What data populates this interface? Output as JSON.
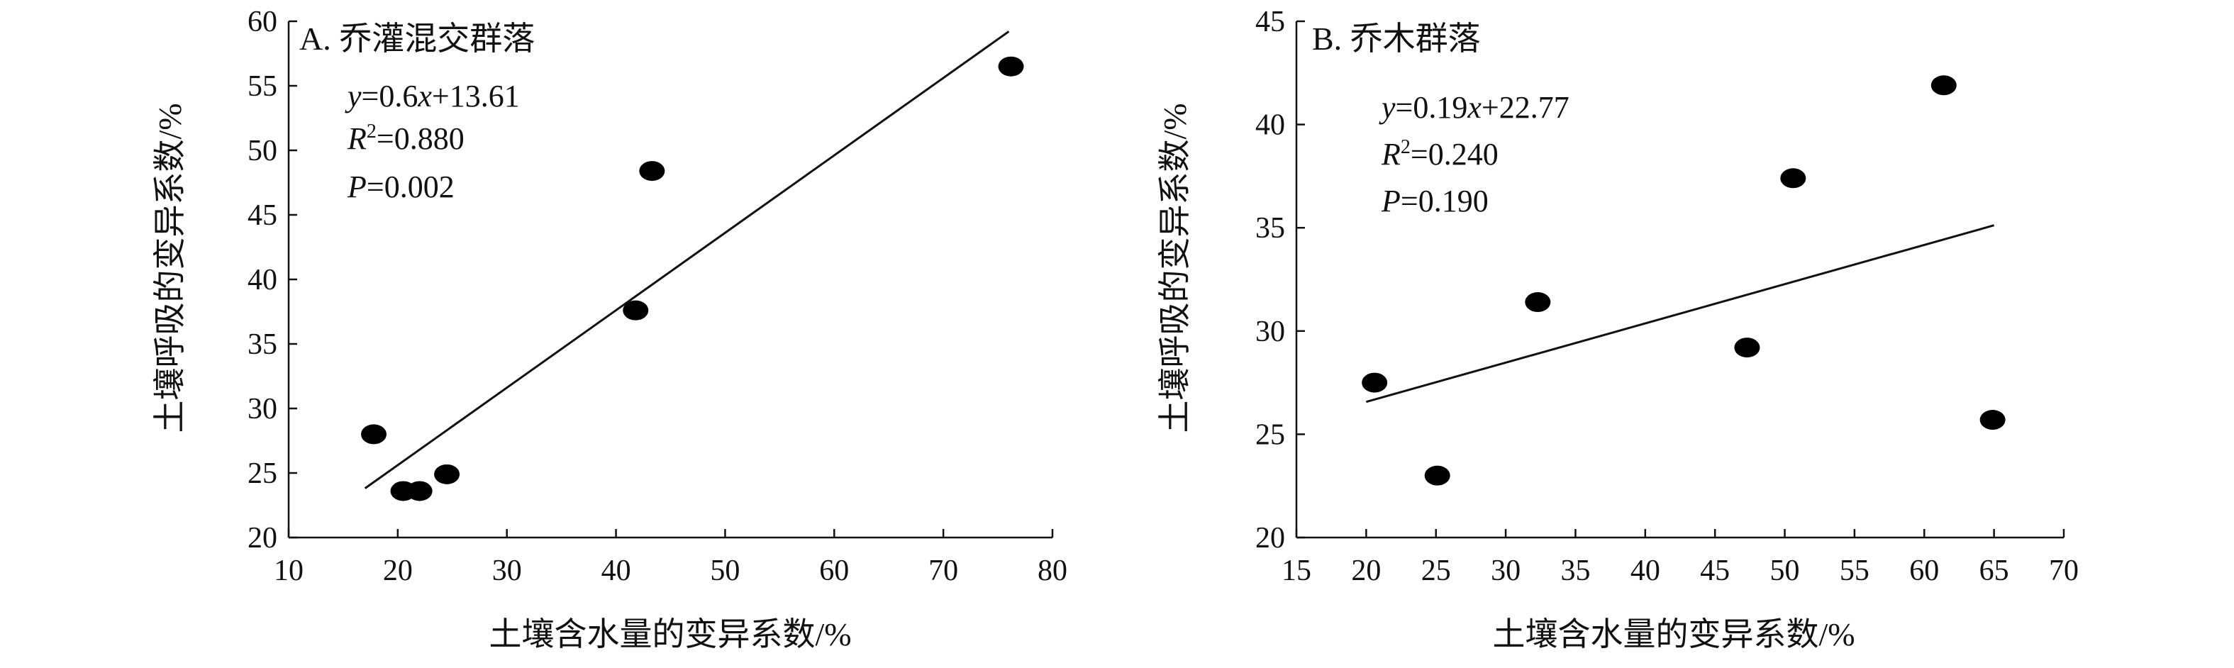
{
  "chart_data": [
    {
      "type": "scatter",
      "title": "A. 乔灌混交群落",
      "xlabel": "土壤含水量的变异系数/%",
      "ylabel": "土壤呼吸的变异系数/%",
      "xlim": [
        10,
        80
      ],
      "ylim": [
        20,
        60
      ],
      "xticks": [
        10,
        20,
        30,
        40,
        50,
        60,
        70,
        80
      ],
      "yticks": [
        20,
        25,
        30,
        35,
        40,
        45,
        50,
        55,
        60
      ],
      "xtick_labels": [
        "10",
        "20",
        "30",
        "40",
        "50",
        "60",
        "70",
        "80"
      ],
      "ytick_labels": [
        "20",
        "25",
        "30",
        "35",
        "40",
        "45",
        "50",
        "55",
        "60"
      ],
      "points": [
        {
          "x": 17.8,
          "y": 28.0
        },
        {
          "x": 20.5,
          "y": 23.6
        },
        {
          "x": 22.0,
          "y": 23.6
        },
        {
          "x": 24.5,
          "y": 24.9
        },
        {
          "x": 41.8,
          "y": 37.6
        },
        {
          "x": 43.3,
          "y": 48.4
        },
        {
          "x": 76.2,
          "y": 56.5
        }
      ],
      "fit_line": {
        "slope": 0.6,
        "intercept": 13.61,
        "x_range": [
          17.0,
          76.0
        ]
      },
      "equation": {
        "y": "y",
        "coef": "=0.6",
        "x": "x",
        "rest": "+13.61"
      },
      "r2": {
        "label": "R",
        "sup": "2",
        "value": "=0.880"
      },
      "p": {
        "label": "P",
        "value": "=0.002"
      }
    },
    {
      "type": "scatter",
      "title": "B. 乔木群落",
      "xlabel": "土壤含水量的变异系数/%",
      "ylabel": "土壤呼吸的变异系数/%",
      "xlim": [
        15,
        70
      ],
      "ylim": [
        20,
        45
      ],
      "xticks": [
        15,
        20,
        25,
        30,
        35,
        40,
        45,
        50,
        55,
        60,
        65,
        70
      ],
      "yticks": [
        20,
        25,
        30,
        35,
        40,
        45
      ],
      "xtick_labels": [
        "15",
        "20",
        "25",
        "30",
        "35",
        "40",
        "45",
        "50",
        "55",
        "60",
        "65",
        "70"
      ],
      "ytick_labels": [
        "20",
        "25",
        "30",
        "35",
        "40",
        "45"
      ],
      "points": [
        {
          "x": 20.6,
          "y": 27.5
        },
        {
          "x": 25.1,
          "y": 23.0
        },
        {
          "x": 32.3,
          "y": 31.4
        },
        {
          "x": 47.3,
          "y": 29.2
        },
        {
          "x": 50.6,
          "y": 37.4
        },
        {
          "x": 61.4,
          "y": 41.9
        },
        {
          "x": 64.9,
          "y": 25.7
        }
      ],
      "fit_line": {
        "slope": 0.19,
        "intercept": 22.77,
        "x_range": [
          20.0,
          65.0
        ]
      },
      "equation": {
        "y": "y",
        "coef": "=0.19",
        "x": "x",
        "rest": "+22.77"
      },
      "r2": {
        "label": "R",
        "sup": "2",
        "value": "=0.240"
      },
      "p": {
        "label": "P",
        "value": "=0.190"
      }
    }
  ]
}
